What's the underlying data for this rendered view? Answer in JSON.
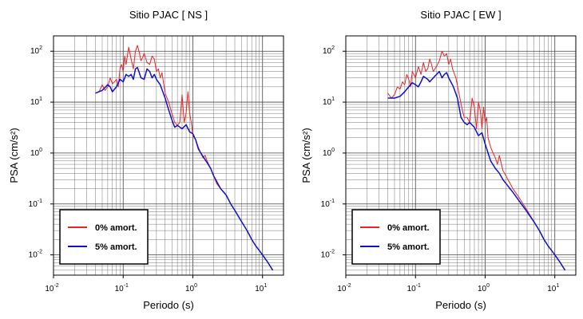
{
  "chart_data": [
    {
      "type": "line",
      "title": "Sitio PJAC [ NS ]",
      "xlabel": "Periodo (s)",
      "ylabel": "PSA (cm/s²)",
      "xscale": "log",
      "yscale": "log",
      "xlim": [
        0.01,
        20
      ],
      "ylim": [
        0.004,
        200
      ],
      "xticks": [
        {
          "value": 0.01,
          "base": "10",
          "exp": "-2"
        },
        {
          "value": 0.1,
          "base": "10",
          "exp": "-1"
        },
        {
          "value": 1,
          "base": "10",
          "exp": "0"
        },
        {
          "value": 10,
          "base": "10",
          "exp": "1"
        }
      ],
      "yticks": [
        {
          "value": 0.01,
          "base": "10",
          "exp": "-2"
        },
        {
          "value": 0.1,
          "base": "10",
          "exp": "-1"
        },
        {
          "value": 1,
          "base": "10",
          "exp": "0"
        },
        {
          "value": 10,
          "base": "10",
          "exp": "1"
        },
        {
          "value": 100,
          "base": "10",
          "exp": "2"
        }
      ],
      "grid": true,
      "legend_position": "bottom-left",
      "series": [
        {
          "name": "0% amort.",
          "color": "#e8242a",
          "x": [
            0.04,
            0.045,
            0.05,
            0.055,
            0.06,
            0.065,
            0.07,
            0.075,
            0.08,
            0.085,
            0.09,
            0.095,
            0.1,
            0.105,
            0.11,
            0.12,
            0.13,
            0.14,
            0.15,
            0.16,
            0.17,
            0.18,
            0.19,
            0.2,
            0.22,
            0.24,
            0.26,
            0.28,
            0.3,
            0.32,
            0.34,
            0.36,
            0.4,
            0.45,
            0.5,
            0.55,
            0.6,
            0.65,
            0.7,
            0.75,
            0.8,
            0.85,
            0.9,
            0.95,
            1.0,
            1.1,
            1.2,
            1.3,
            1.4,
            1.5,
            1.6,
            1.8,
            2.0,
            2.2,
            2.5,
            2.8,
            3.0,
            3.5,
            4,
            5,
            6,
            7,
            8,
            10,
            12,
            14
          ],
          "values": [
            15,
            16,
            22,
            17,
            20,
            30,
            23,
            25,
            28,
            20,
            45,
            55,
            40,
            80,
            55,
            120,
            70,
            45,
            100,
            130,
            95,
            65,
            75,
            90,
            60,
            55,
            80,
            70,
            40,
            45,
            30,
            38,
            15,
            10,
            6,
            4,
            3.5,
            4,
            14,
            4,
            6,
            16,
            6,
            4,
            2.2,
            1.8,
            1.3,
            1.0,
            0.8,
            0.9,
            0.7,
            0.5,
            0.35,
            0.25,
            0.2,
            0.17,
            0.15,
            0.1,
            0.075,
            0.045,
            0.03,
            0.02,
            0.015,
            0.01,
            0.007,
            0.005
          ]
        },
        {
          "name": "5% amort.",
          "color": "#1010cc",
          "x": [
            0.04,
            0.05,
            0.06,
            0.065,
            0.07,
            0.08,
            0.09,
            0.1,
            0.11,
            0.12,
            0.13,
            0.14,
            0.15,
            0.16,
            0.17,
            0.18,
            0.2,
            0.22,
            0.24,
            0.26,
            0.28,
            0.3,
            0.34,
            0.4,
            0.45,
            0.5,
            0.55,
            0.6,
            0.7,
            0.8,
            0.9,
            1.0,
            1.1,
            1.2,
            1.4,
            1.6,
            1.8,
            2.0,
            2.5,
            3.0,
            3.5,
            4,
            5,
            6,
            7,
            8,
            10,
            12,
            14
          ],
          "values": [
            15,
            17,
            22,
            20,
            16,
            20,
            28,
            25,
            35,
            32,
            35,
            28,
            45,
            48,
            38,
            30,
            28,
            45,
            40,
            30,
            35,
            28,
            22,
            12,
            7,
            4.5,
            3.2,
            3.5,
            3.0,
            3.6,
            2.6,
            2.4,
            1.8,
            1.2,
            0.85,
            0.65,
            0.5,
            0.35,
            0.2,
            0.15,
            0.1,
            0.075,
            0.045,
            0.03,
            0.02,
            0.015,
            0.01,
            0.007,
            0.005
          ]
        }
      ]
    },
    {
      "type": "line",
      "title": "Sitio PJAC [ EW ]",
      "xlabel": "Periodo (s)",
      "ylabel": "PSA (cm/s²)",
      "xscale": "log",
      "yscale": "log",
      "xlim": [
        0.01,
        20
      ],
      "ylim": [
        0.004,
        200
      ],
      "xticks": [
        {
          "value": 0.01,
          "base": "10",
          "exp": "-2"
        },
        {
          "value": 0.1,
          "base": "10",
          "exp": "-1"
        },
        {
          "value": 1,
          "base": "10",
          "exp": "0"
        },
        {
          "value": 10,
          "base": "10",
          "exp": "1"
        }
      ],
      "yticks": [
        {
          "value": 0.01,
          "base": "10",
          "exp": "-2"
        },
        {
          "value": 0.1,
          "base": "10",
          "exp": "-1"
        },
        {
          "value": 1,
          "base": "10",
          "exp": "0"
        },
        {
          "value": 10,
          "base": "10",
          "exp": "1"
        },
        {
          "value": 100,
          "base": "10",
          "exp": "2"
        }
      ],
      "grid": true,
      "legend_position": "bottom-left",
      "series": [
        {
          "name": "0% amort.",
          "color": "#e8242a",
          "x": [
            0.04,
            0.045,
            0.05,
            0.055,
            0.06,
            0.065,
            0.07,
            0.075,
            0.08,
            0.085,
            0.09,
            0.1,
            0.11,
            0.12,
            0.13,
            0.14,
            0.15,
            0.16,
            0.17,
            0.18,
            0.2,
            0.22,
            0.24,
            0.26,
            0.28,
            0.3,
            0.32,
            0.34,
            0.38,
            0.42,
            0.46,
            0.5,
            0.55,
            0.6,
            0.65,
            0.7,
            0.75,
            0.8,
            0.85,
            0.9,
            0.95,
            1.0,
            1.05,
            1.1,
            1.2,
            1.3,
            1.4,
            1.5,
            1.6,
            1.8,
            2.0,
            2.5,
            3.0,
            3.5,
            4,
            5,
            6,
            7,
            8,
            10,
            12,
            14
          ],
          "values": [
            15,
            12,
            14,
            20,
            18,
            25,
            22,
            35,
            28,
            20,
            40,
            30,
            50,
            35,
            60,
            40,
            45,
            70,
            55,
            40,
            50,
            65,
            100,
            80,
            90,
            55,
            70,
            45,
            30,
            15,
            8,
            5,
            5,
            4,
            12,
            8,
            3,
            10,
            7,
            3,
            8,
            4,
            5,
            2,
            1.3,
            1.0,
            0.8,
            0.6,
            0.9,
            0.45,
            0.35,
            0.2,
            0.14,
            0.1,
            0.075,
            0.045,
            0.03,
            0.02,
            0.015,
            0.01,
            0.007,
            0.005
          ]
        },
        {
          "name": "5% amort.",
          "color": "#1010cc",
          "x": [
            0.04,
            0.05,
            0.06,
            0.07,
            0.08,
            0.09,
            0.1,
            0.11,
            0.12,
            0.13,
            0.14,
            0.15,
            0.16,
            0.18,
            0.2,
            0.22,
            0.24,
            0.26,
            0.28,
            0.3,
            0.35,
            0.4,
            0.45,
            0.5,
            0.55,
            0.6,
            0.7,
            0.8,
            0.9,
            1.0,
            1.1,
            1.2,
            1.4,
            1.6,
            1.8,
            2.0,
            2.5,
            3.0,
            3.5,
            4,
            5,
            6,
            7,
            8,
            10,
            12,
            14
          ],
          "values": [
            12,
            12,
            13,
            16,
            20,
            24,
            22,
            20,
            25,
            32,
            30,
            28,
            25,
            30,
            35,
            40,
            30,
            35,
            38,
            30,
            20,
            12,
            5,
            4,
            3.6,
            4,
            3.2,
            2.2,
            2.5,
            1.5,
            1.0,
            0.7,
            0.5,
            0.4,
            0.3,
            0.25,
            0.17,
            0.12,
            0.09,
            0.07,
            0.045,
            0.03,
            0.02,
            0.015,
            0.01,
            0.007,
            0.005
          ]
        }
      ]
    }
  ]
}
